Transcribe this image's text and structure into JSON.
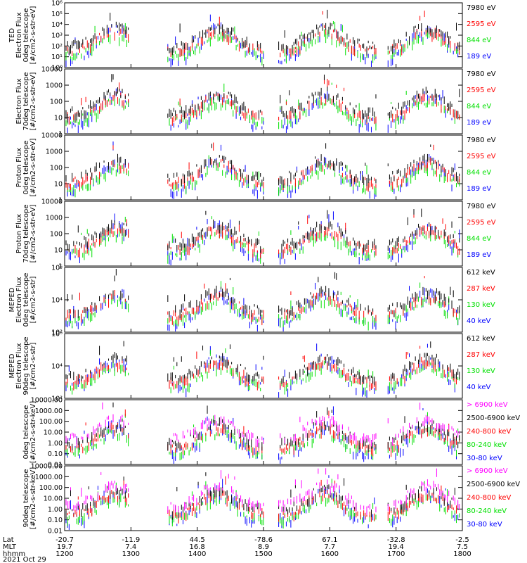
{
  "colors": {
    "black": "#000000",
    "red": "#ff0000",
    "green": "#00e000",
    "blue": "#0000ff",
    "magenta": "#ff00ff"
  },
  "footer": {
    "row_labels": [
      "Lat",
      "MLT",
      "hhmm"
    ],
    "date": "2021 Oct 29",
    "lat": [
      "-20.7",
      "-11.9",
      "44.5",
      "-78.6",
      "67.1",
      "-32.8",
      "-2.5"
    ],
    "mlt": [
      "19.7",
      "7.4",
      "16.8",
      "8.9",
      "7.7",
      "19.4",
      "7.5"
    ],
    "hhmm": [
      "1200",
      "1300",
      "1400",
      "1500",
      "1600",
      "1700",
      "1800"
    ]
  },
  "chart_data": [
    {
      "type": "scatter",
      "ylabel": [
        "TED",
        "Electron Flux",
        "0deg telescope",
        "[#/cm2-s-str-eV]"
      ],
      "y_scale": "log",
      "ylim": [
        1,
        1000000
      ],
      "tick_labels": [
        "10⁰",
        "10¹",
        "10²",
        "10³",
        "10⁴",
        "10⁵",
        "10⁶"
      ],
      "legend": [
        {
          "label": "7980 eV",
          "color": "black"
        },
        {
          "label": "2595 eV",
          "color": "red"
        },
        {
          "label": "844 eV",
          "color": "green"
        },
        {
          "label": "189 eV",
          "color": "blue"
        }
      ]
    },
    {
      "type": "scatter",
      "ylabel": [
        "Electron Flux",
        "70deg telescope",
        "[#/cm2-s-str-eV]"
      ],
      "y_scale": "log",
      "ylim": [
        1,
        10000
      ],
      "tick_labels": [
        "1",
        "10",
        "100",
        "1000",
        "10000"
      ],
      "legend": [
        {
          "label": "7980 eV",
          "color": "black"
        },
        {
          "label": "2595 eV",
          "color": "red"
        },
        {
          "label": "844 eV",
          "color": "green"
        },
        {
          "label": "189 eV",
          "color": "blue"
        }
      ]
    },
    {
      "type": "scatter",
      "ylabel": [
        "Proton Flux",
        "0deg telescope",
        "[#/cm2-s-str-eV]"
      ],
      "y_scale": "log",
      "ylim": [
        1,
        10000
      ],
      "tick_labels": [
        "1",
        "10",
        "100",
        "1000",
        "10000"
      ],
      "legend": [
        {
          "label": "7980 eV",
          "color": "black"
        },
        {
          "label": "2595 eV",
          "color": "red"
        },
        {
          "label": "844 eV",
          "color": "green"
        },
        {
          "label": "189 eV",
          "color": "blue"
        }
      ]
    },
    {
      "type": "scatter",
      "ylabel": [
        "Proton Flux",
        "70deg telescope",
        "[#/cm2-s-str-eV]"
      ],
      "y_scale": "log",
      "ylim": [
        1,
        10000
      ],
      "tick_labels": [
        "1",
        "10",
        "100",
        "1000",
        "10000"
      ],
      "legend": [
        {
          "label": "7980 eV",
          "color": "black"
        },
        {
          "label": "2595 eV",
          "color": "red"
        },
        {
          "label": "844 eV",
          "color": "green"
        },
        {
          "label": "189 eV",
          "color": "blue"
        }
      ]
    },
    {
      "type": "scatter",
      "ylabel": [
        "MEPED",
        "Electron Flux",
        "0deg telescope",
        "[#/cm2-s-str]"
      ],
      "y_scale": "log",
      "ylim": [
        10,
        10000000
      ],
      "tick_labels": [
        "10²",
        "10⁴",
        "10⁶"
      ],
      "legend": [
        {
          "label": "612 keV",
          "color": "black"
        },
        {
          "label": "287 keV",
          "color": "red"
        },
        {
          "label": "130 keV",
          "color": "green"
        },
        {
          "label": "40 keV",
          "color": "blue"
        }
      ]
    },
    {
      "type": "scatter",
      "ylabel": [
        "MEPED",
        "Electron Flux",
        "90deg telescope",
        "[#/cm2-s-str]"
      ],
      "y_scale": "log",
      "ylim": [
        10,
        10000000
      ],
      "tick_labels": [
        "10²",
        "10⁴",
        "10⁶"
      ],
      "legend": [
        {
          "label": "612 keV",
          "color": "black"
        },
        {
          "label": "287 keV",
          "color": "red"
        },
        {
          "label": "130 keV",
          "color": "green"
        },
        {
          "label": "40 keV",
          "color": "blue"
        }
      ]
    },
    {
      "type": "scatter",
      "ylabel": [
        "0deg telescope",
        "[#/cm2-s-str-keV]"
      ],
      "y_scale": "log",
      "ylim": [
        0.01,
        10000
      ],
      "tick_labels": [
        "0.01",
        "0.10",
        "1.00",
        "10.00",
        "100.00",
        "1000.00",
        "10000.00"
      ],
      "legend": [
        {
          "label": "> 6900 keV",
          "color": "magenta"
        },
        {
          "label": "2500-6900 keV",
          "color": "black"
        },
        {
          "label": "240-800 keV",
          "color": "red"
        },
        {
          "label": "80-240 keV",
          "color": "green"
        },
        {
          "label": "30-80 keV",
          "color": "blue"
        }
      ]
    },
    {
      "type": "scatter",
      "ylabel": [
        "90deg telescope",
        "[#/cm2-s-str-keV]"
      ],
      "y_scale": "log",
      "ylim": [
        0.01,
        10000
      ],
      "tick_labels": [
        "0.01",
        "0.10",
        "1.00",
        "10.00",
        "100.00",
        "1000.00",
        "10000.00"
      ],
      "legend": [
        {
          "label": "> 6900 keV",
          "color": "magenta"
        },
        {
          "label": "2500-6900 keV",
          "color": "black"
        },
        {
          "label": "240-800 keV",
          "color": "red"
        },
        {
          "label": "80-240 keV",
          "color": "green"
        },
        {
          "label": "30-80 keV",
          "color": "blue"
        }
      ]
    }
  ]
}
